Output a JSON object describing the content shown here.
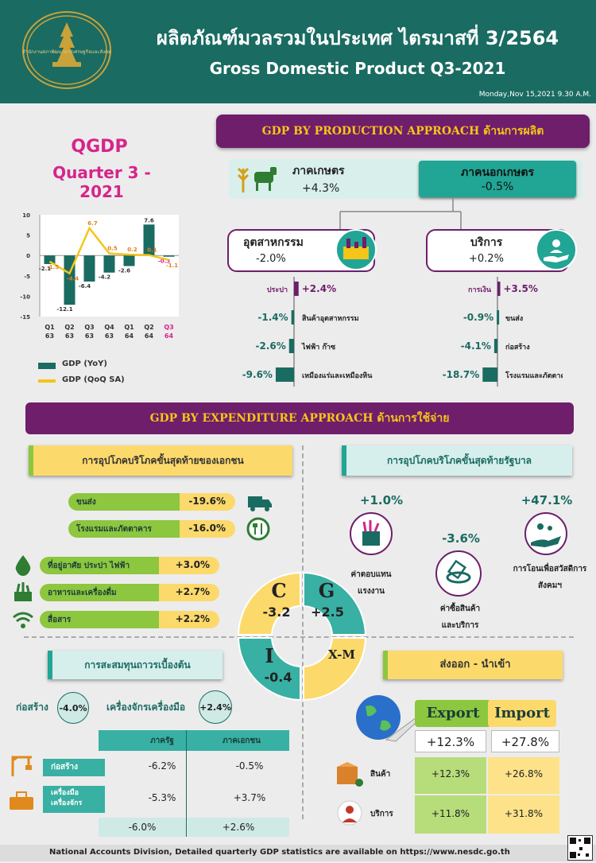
{
  "header": {
    "title_th": "ผลิตภัณฑ์มวลรวมในประเทศ ไตรมาสที่ 3/2564",
    "title_en": "Gross Domestic Product Q3-2021",
    "date": "Monday,Nov 15,2021 9.30 A.M.",
    "seal_text": "สำนักงานสภาพัฒนาการเศรษฐกิจและสังคมแห่งชาติ"
  },
  "qgdp": {
    "title": "QGDP",
    "subtitle": "Quarter 3 - 2021",
    "legend_yoy": "GDP (YoY)",
    "legend_qoq": "GDP (QoQ SA)"
  },
  "chart_data": {
    "type": "bar",
    "categories": [
      [
        "Q1",
        "63"
      ],
      [
        "Q2",
        "63"
      ],
      [
        "Q3",
        "63"
      ],
      [
        "Q4",
        "63"
      ],
      [
        "Q1",
        "64"
      ],
      [
        "Q2",
        "64"
      ],
      [
        "Q3",
        "64"
      ]
    ],
    "series": [
      {
        "name": "GDP (YoY)",
        "type": "bar",
        "color": "#1a6b62",
        "values": [
          -2.1,
          -12.1,
          -6.4,
          -4.2,
          -2.6,
          7.6,
          -0.3
        ]
      },
      {
        "name": "GDP (QoQ SA)",
        "type": "line",
        "color": "#f5c518",
        "values": [
          -1.5,
          -4.4,
          6.7,
          0.5,
          0.2,
          0.1,
          -1.1
        ]
      }
    ],
    "yticks": [
      10,
      5,
      0,
      -5,
      -10,
      -15
    ],
    "ylim": [
      -15,
      10
    ],
    "grid": false
  },
  "production": {
    "title": "GDP BY PRODUCTION APPROACH ด้านการผลิต",
    "agri_label": "ภาคเกษตร",
    "agri_value": "+4.3%",
    "nonagri_label": "ภาคนอกเกษตร",
    "nonagri_value": "-0.5%",
    "industry_label": "อุตสาหกรรม",
    "industry_value": "-2.0%",
    "services_label": "บริการ",
    "services_value": "+0.2%",
    "industry_items": [
      {
        "label": "ประปา",
        "value": "+2.4%",
        "num": 2.4
      },
      {
        "label": "สินค้าอุตสาหกรรม",
        "value": "-1.4%",
        "num": -1.4
      },
      {
        "label": "ไฟฟ้า ก๊าซ",
        "value": "-2.6%",
        "num": -2.6
      },
      {
        "label": "เหมืองแร่และเหมืองหิน",
        "value": "-9.6%",
        "num": -9.6
      }
    ],
    "services_items": [
      {
        "label": "การเงิน",
        "value": "+3.5%",
        "num": 3.5
      },
      {
        "label": "ขนส่ง",
        "value": "-0.9%",
        "num": -0.9
      },
      {
        "label": "ก่อสร้าง",
        "value": "-4.1%",
        "num": -4.1
      },
      {
        "label": "โรงแรมและภัตตาคาร",
        "value": "-18.7%",
        "num": -18.7
      }
    ]
  },
  "expenditure": {
    "title": "GDP BY EXPENDITURE APPROACH ด้านการใช้จ่าย",
    "private_title": "การอุปโภคบริโภคขั้นสุดท้ายของเอกชน",
    "private_items": [
      {
        "label": "ขนส่ง",
        "value": "-19.6%",
        "num": -19.6,
        "icon": "truck-icon"
      },
      {
        "label": "โรงแรมและภัตตาคาร",
        "value": "-16.0%",
        "num": -16.0,
        "icon": "restaurant-icon"
      },
      {
        "label": "ที่อยู่อาศัย ประปา ไฟฟ้า",
        "value": "+3.0%",
        "num": 3.0,
        "icon": "water-drop-icon"
      },
      {
        "label": "อาหารและเครื่องดื่ม",
        "value": "+2.7%",
        "num": 2.7,
        "icon": "food-basket-icon"
      },
      {
        "label": "สื่อสาร",
        "value": "+2.2%",
        "num": 2.2,
        "icon": "wifi-icon"
      }
    ],
    "gov_title": "การอุปโภคบริโภคขั้นสุดท้ายรัฐบาล",
    "gov_items": [
      {
        "value": "+1.0%",
        "label1": "ค่าตอบแทน",
        "label2": "แรงงาน",
        "icon": "compensation-icon"
      },
      {
        "value": "-3.6%",
        "label1": "ค่าซื้อสินค้า",
        "label2": "และบริการ",
        "icon": "purchase-icon"
      },
      {
        "value": "+47.1%",
        "label1": "การโอนเพื่อสวัสดิการ",
        "label2": "สังคมฯ",
        "icon": "welfare-icon"
      }
    ],
    "center": {
      "c_letter": "C",
      "c_value": "-3.2",
      "g_letter": "G",
      "g_value": "+2.5",
      "i_letter": "I",
      "i_value": "-0.4",
      "xm_letter": "X-M"
    },
    "investment_title": "การสะสมทุนถาวรเบื้องต้น",
    "construction_label": "ก่อสร้าง",
    "construction_value": "-4.0%",
    "machinery_label": "เครื่องจักรเครื่องมือ",
    "machinery_value": "+2.4%",
    "inv_table": {
      "col_public": "ภาครัฐ",
      "col_private": "ภาคเอกชน",
      "rows": [
        {
          "label": "ก่อสร้าง",
          "public": "-6.2%",
          "private": "-0.5%",
          "icon": "crane-icon"
        },
        {
          "label": "เครื่องมือเครื่องจักร",
          "public": "-5.3%",
          "private": "+3.7%",
          "icon": "toolbox-icon"
        }
      ],
      "total_public": "-6.0%",
      "total_private": "+2.6%"
    },
    "trade_title": "ส่งออก - นำเข้า",
    "export_label": "Export",
    "import_label": "Import",
    "export_total": "+12.3%",
    "import_total": "+27.8%",
    "trade_rows": [
      {
        "label": "สินค้า",
        "export": "+12.3%",
        "import": "+26.8%",
        "icon": "goods-box-icon"
      },
      {
        "label": "บริการ",
        "export": "+11.8%",
        "import": "+31.8%",
        "icon": "service-person-icon"
      }
    ]
  },
  "footer": {
    "text": "National Accounts Division, Detailed quarterly GDP statistics are available on https://www.nesdc.go.th"
  },
  "colors": {
    "teal": "#1a6b62",
    "purple": "#6e1e6b",
    "yellow": "#f5c518",
    "green": "#8dc63f",
    "red": "#c0392b"
  }
}
